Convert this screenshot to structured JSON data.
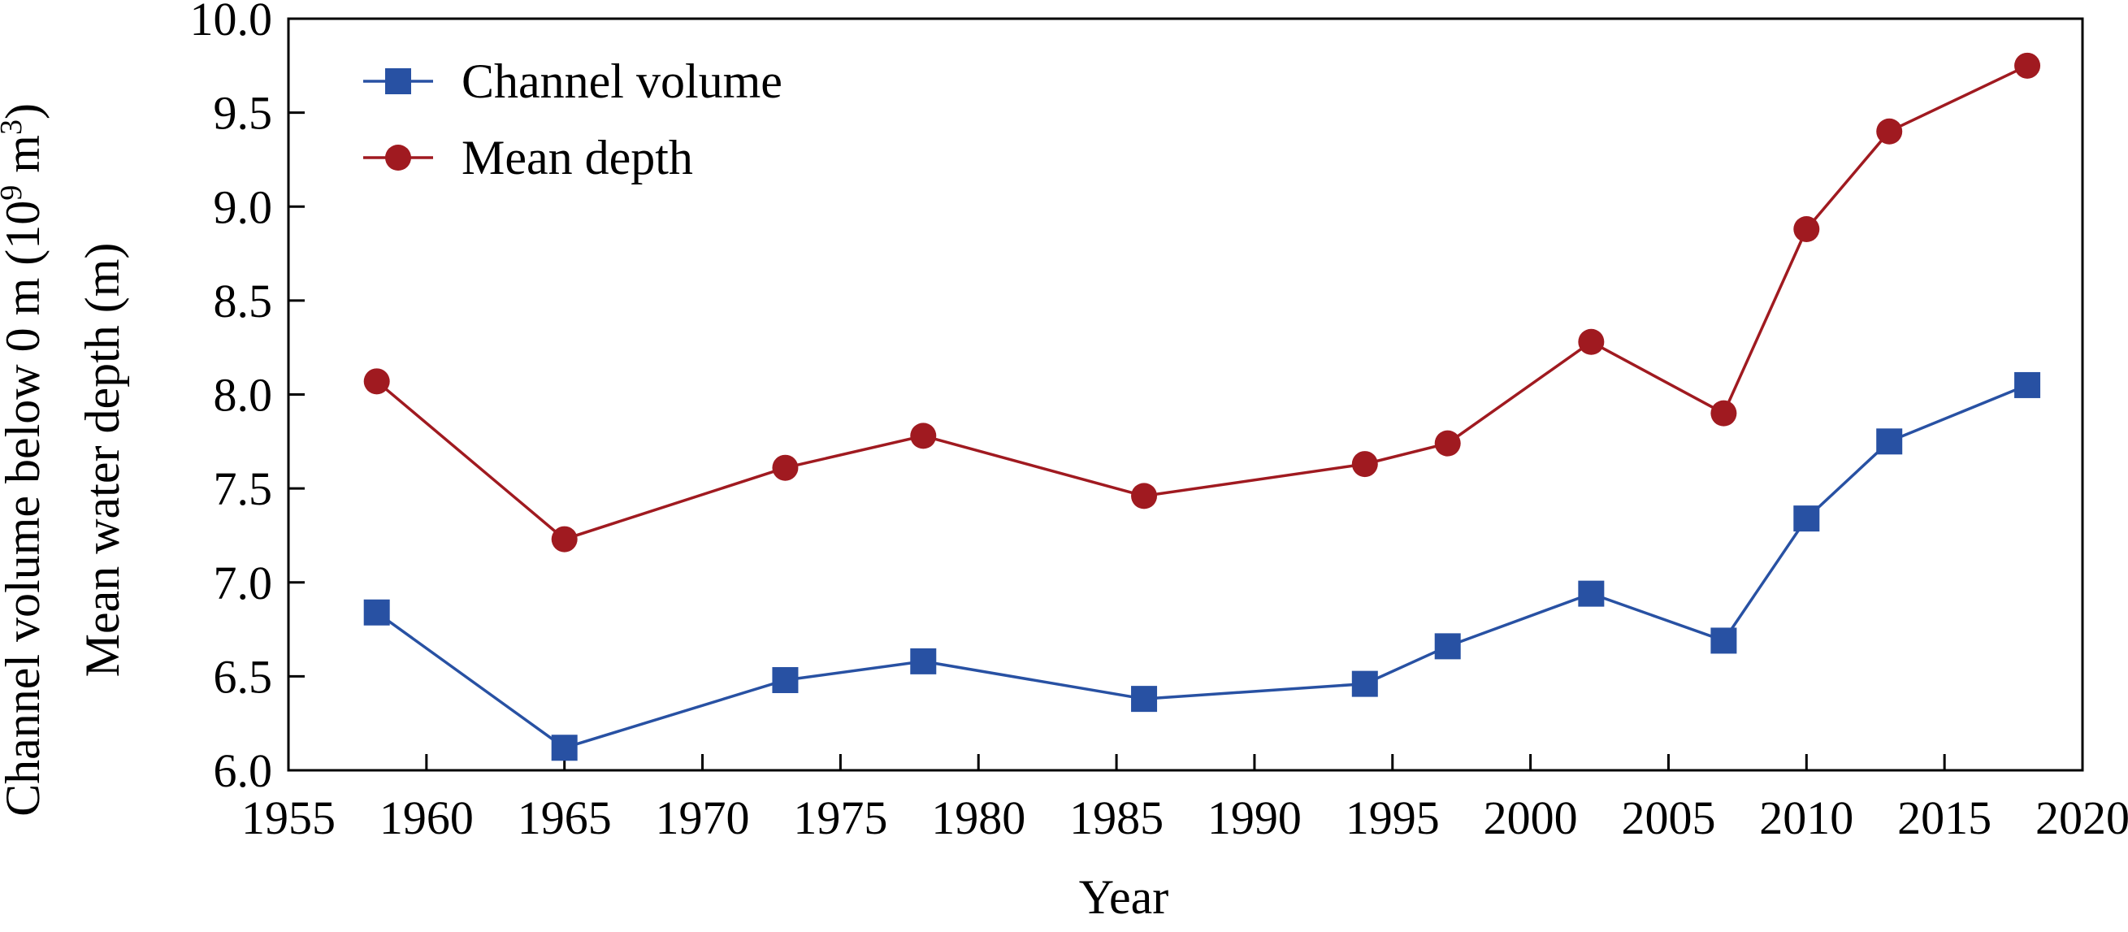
{
  "chart_data": {
    "type": "line",
    "xlabel": "Year",
    "ylabel_line1": "Channel volume below 0 m (10",
    "ylabel_sup1": "9",
    "ylabel_mid": " m",
    "ylabel_sup2": "3",
    "ylabel_end": ")",
    "ylabel_line2": "Mean water depth (m)",
    "xlim": [
      1955,
      2020
    ],
    "ylim": [
      6.0,
      10.0
    ],
    "x_ticks": [
      1955,
      1960,
      1965,
      1970,
      1975,
      1980,
      1985,
      1990,
      1995,
      2000,
      2005,
      2010,
      2015,
      2020
    ],
    "y_ticks": [
      "6.0",
      "6.5",
      "7.0",
      "7.5",
      "8.0",
      "8.5",
      "9.0",
      "9.5",
      "10.0"
    ],
    "grid": false,
    "legend_position": "top-left",
    "series": [
      {
        "name": "Channel volume",
        "marker": "square",
        "color": "#2851A3",
        "x": [
          1958.2,
          1965,
          1973,
          1978,
          1986,
          1994,
          1997,
          2002.2,
          2007,
          2010,
          2013,
          2018
        ],
        "y": [
          6.84,
          6.12,
          6.48,
          6.58,
          6.38,
          6.46,
          6.66,
          6.94,
          6.69,
          7.34,
          7.75,
          8.05
        ]
      },
      {
        "name": "Mean depth",
        "marker": "circle",
        "color": "#A01A20",
        "x": [
          1958.2,
          1965,
          1973,
          1978,
          1986,
          1994,
          1997,
          2002.2,
          2007,
          2010,
          2013,
          2018
        ],
        "y": [
          8.07,
          7.23,
          7.61,
          7.78,
          7.46,
          7.63,
          7.74,
          8.28,
          7.9,
          8.88,
          9.4,
          9.75
        ]
      }
    ]
  }
}
